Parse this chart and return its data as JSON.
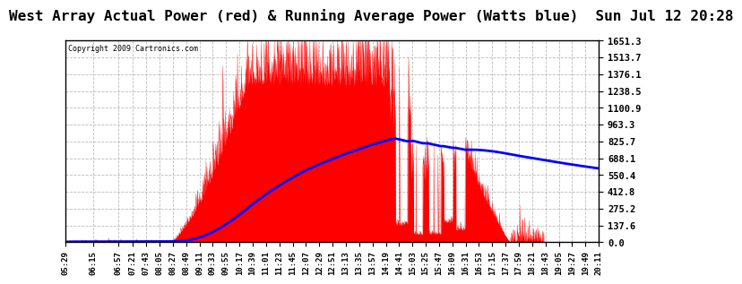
{
  "title": "West Array Actual Power (red) & Running Average Power (Watts blue)  Sun Jul 12 20:28",
  "copyright": "Copyright 2009 Cartronics.com",
  "y_tick_values": [
    0.0,
    137.6,
    275.2,
    412.8,
    550.4,
    688.1,
    825.7,
    963.3,
    1100.9,
    1238.5,
    1376.1,
    1513.7,
    1651.3
  ],
  "ymax": 1651.3,
  "ymin": 0.0,
  "background_color": "#ffffff",
  "grid_color": "#bbbbbb",
  "actual_color": "#ff0000",
  "average_color": "#0000ff",
  "title_fontsize": 11.5,
  "x_labels": [
    "05:29",
    "06:15",
    "06:57",
    "07:21",
    "07:43",
    "08:05",
    "08:27",
    "08:49",
    "09:11",
    "09:33",
    "09:55",
    "10:17",
    "10:39",
    "11:01",
    "11:23",
    "11:45",
    "12:07",
    "12:29",
    "12:51",
    "13:13",
    "13:35",
    "13:57",
    "14:19",
    "14:41",
    "15:03",
    "15:25",
    "15:47",
    "16:09",
    "16:31",
    "16:53",
    "17:15",
    "17:37",
    "17:59",
    "18:21",
    "18:43",
    "19:05",
    "19:27",
    "19:49",
    "20:11"
  ]
}
